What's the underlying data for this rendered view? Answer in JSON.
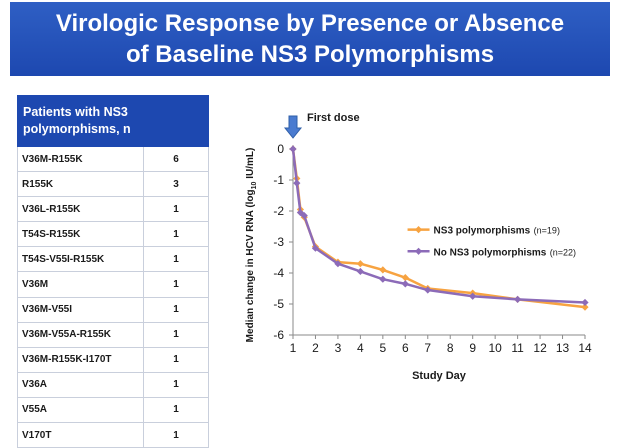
{
  "slide": {
    "title_line1": "Virologic Response by Presence or Absence",
    "title_line2": "of Baseline NS3 Polymorphisms"
  },
  "table": {
    "header": "Patients with NS3 polymorphisms, n",
    "rows": [
      {
        "label": "V36M-R155K",
        "n": "6"
      },
      {
        "label": "R155K",
        "n": "3"
      },
      {
        "label": "V36L-R155K",
        "n": "1"
      },
      {
        "label": "T54S-R155K",
        "n": "1"
      },
      {
        "label": "T54S-V55I-R155K",
        "n": "1"
      },
      {
        "label": "V36M",
        "n": "1"
      },
      {
        "label": "V36M-V55I",
        "n": "1"
      },
      {
        "label": "V36M-V55A-R155K",
        "n": "1"
      },
      {
        "label": "V36M-R155K-I170T",
        "n": "1"
      },
      {
        "label": "V36A",
        "n": "1"
      },
      {
        "label": "V55A",
        "n": "1"
      },
      {
        "label": "V170T",
        "n": "1"
      }
    ]
  },
  "chart_data": {
    "type": "line",
    "annotation": "First dose",
    "annotation_x": 1,
    "xlabel": "Study Day",
    "ylabel_prefix": "Median change in HCV RNA (log",
    "ylabel_sub": "10",
    "ylabel_suffix": " IU/mL)",
    "xlim": [
      1,
      14
    ],
    "ylim": [
      -6,
      0
    ],
    "x_ticks": [
      1,
      2,
      3,
      4,
      5,
      6,
      7,
      8,
      9,
      10,
      11,
      12,
      13,
      14
    ],
    "y_ticks": [
      0,
      -1,
      -2,
      -3,
      -4,
      -5,
      -6
    ],
    "grid": false,
    "legend_placement": "right",
    "series": [
      {
        "name": "NS3 polymorphisms",
        "count_label": "(n=19)",
        "color": "#f7a341",
        "x": [
          1,
          1.17,
          1.33,
          1.5,
          2,
          3,
          4,
          5,
          6,
          7,
          9,
          11,
          14
        ],
        "y": [
          0,
          -0.95,
          -1.95,
          -2.2,
          -3.15,
          -3.65,
          -3.7,
          -3.9,
          -4.15,
          -4.5,
          -4.65,
          -4.85,
          -5.1
        ]
      },
      {
        "name": "No NS3 polymorphisms",
        "count_label": "(n=22)",
        "color": "#8c6bb8",
        "x": [
          1,
          1.17,
          1.33,
          1.5,
          2,
          3,
          4,
          5,
          6,
          7,
          9,
          11,
          14
        ],
        "y": [
          0,
          -1.1,
          -2.05,
          -2.15,
          -3.2,
          -3.7,
          -3.95,
          -4.2,
          -4.35,
          -4.55,
          -4.75,
          -4.85,
          -4.95
        ]
      }
    ]
  }
}
